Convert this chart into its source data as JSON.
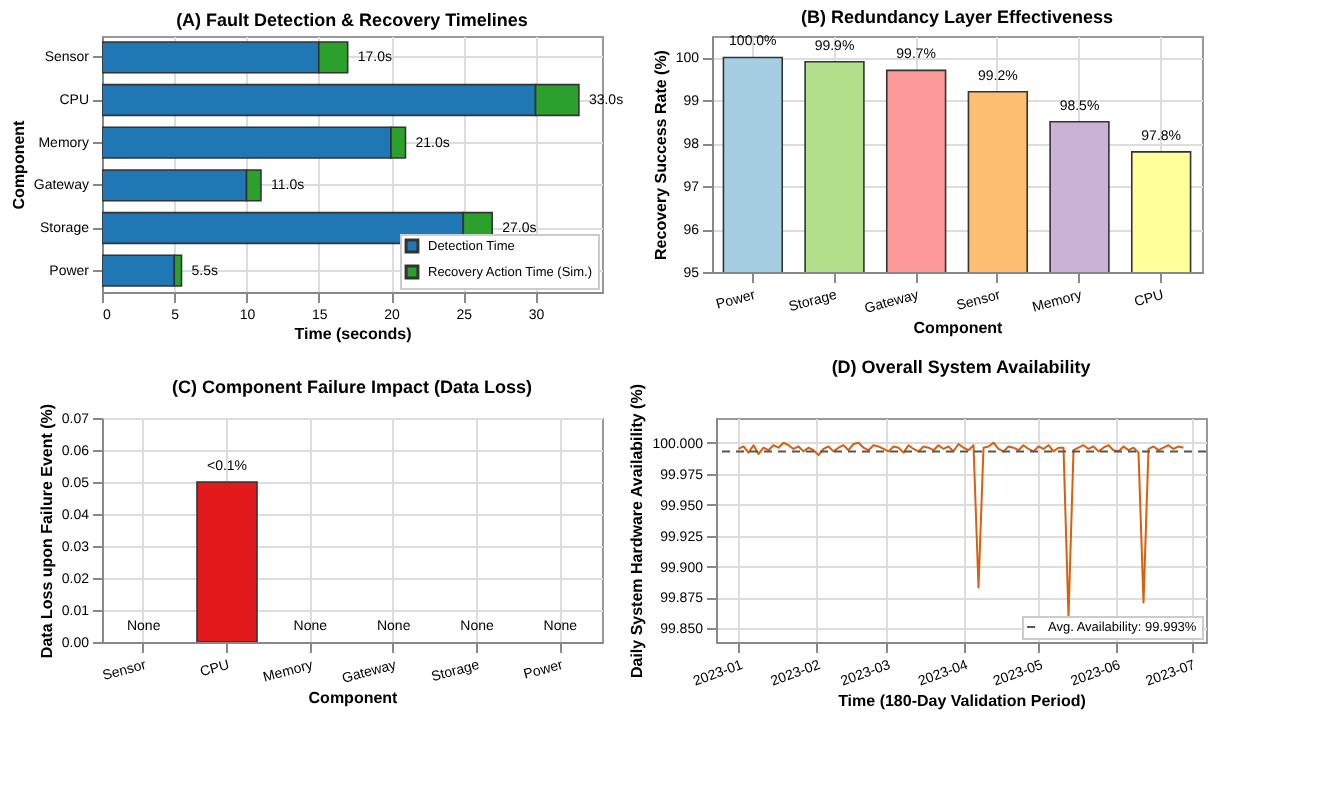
{
  "chart_data": [
    {
      "type": "bar",
      "orientation": "horizontal",
      "stacked": true,
      "title": "(A) Fault Detection & Recovery Timelines",
      "xlabel": "Time (seconds)",
      "ylabel": "Component",
      "categories": [
        "Sensor",
        "CPU",
        "Memory",
        "Gateway",
        "Storage",
        "Power"
      ],
      "series": [
        {
          "name": "Detection Time",
          "color": "#1f77b4",
          "values": [
            15,
            30,
            20,
            10,
            25,
            5
          ]
        },
        {
          "name": "Recovery Action Time (Sim.)",
          "color": "#2ca02c",
          "values": [
            2,
            3,
            1,
            1,
            2,
            0.5
          ]
        }
      ],
      "totals": [
        "17.0s",
        "33.0s",
        "21.0s",
        "11.0s",
        "27.0s",
        "5.5s"
      ],
      "xlim": [
        0,
        34.6
      ],
      "xticks": [
        0,
        5,
        10,
        15,
        20,
        25,
        30
      ],
      "grid": true,
      "legend": "bottom right"
    },
    {
      "type": "bar",
      "title": "(B) Redundancy Layer Effectiveness",
      "xlabel": "Component",
      "ylabel": "Recovery Success Rate (%)",
      "categories": [
        "Power",
        "Storage",
        "Gateway",
        "Sensor",
        "Memory",
        "CPU"
      ],
      "values": [
        100.0,
        99.9,
        99.7,
        99.2,
        98.5,
        97.8
      ],
      "colors": [
        "#a6cee3",
        "#b2df8a",
        "#fb9a99",
        "#fdbf6f",
        "#cab2d6",
        "#ffff99"
      ],
      "value_labels": [
        "100.0%",
        "99.9%",
        "99.7%",
        "99.2%",
        "98.5%",
        "97.8%"
      ],
      "ylim": [
        95,
        100.5
      ],
      "yticks": [
        95,
        96,
        97,
        98,
        99,
        100
      ],
      "grid": true
    },
    {
      "type": "bar",
      "title": "(C) Component Failure Impact (Data Loss)",
      "xlabel": "Component",
      "ylabel": "Data Loss upon Failure Event (%)",
      "categories": [
        "Sensor",
        "CPU",
        "Memory",
        "Gateway",
        "Storage",
        "Power"
      ],
      "values": [
        0,
        0.05,
        0,
        0,
        0,
        0
      ],
      "color": "#e31a1c",
      "value_labels": [
        "None",
        "<0.1%",
        "None",
        "None",
        "None",
        "None"
      ],
      "ylim": [
        0,
        0.07
      ],
      "yticks": [
        {
          "value": 0,
          "label": "0.00"
        },
        {
          "value": 0.01,
          "label": "0.01"
        },
        {
          "value": 0.02,
          "label": "0.02"
        },
        {
          "value": 0.03,
          "label": "0.03"
        },
        {
          "value": 0.04,
          "label": "0.04"
        },
        {
          "value": 0.05,
          "label": "0.05"
        },
        {
          "value": 0.06,
          "label": "0.06"
        },
        {
          "value": 0.07,
          "label": "0.07"
        }
      ],
      "grid": true
    },
    {
      "type": "line",
      "title": "(D) Overall System Availability",
      "xlabel": "Time (180-Day Validation Period)",
      "ylabel": "Daily System Hardware Availability (%)",
      "x": [
        "2023-01-01",
        "2023-01-03",
        "2023-01-05",
        "2023-01-07",
        "2023-01-09",
        "2023-01-11",
        "2023-01-13",
        "2023-01-15",
        "2023-01-17",
        "2023-01-19",
        "2023-01-21",
        "2023-01-23",
        "2023-01-25",
        "2023-01-27",
        "2023-01-29",
        "2023-01-31",
        "2023-02-02",
        "2023-02-04",
        "2023-02-06",
        "2023-02-08",
        "2023-02-10",
        "2023-02-12",
        "2023-02-14",
        "2023-02-16",
        "2023-02-18",
        "2023-02-20",
        "2023-02-22",
        "2023-02-24",
        "2023-02-26",
        "2023-02-28",
        "2023-03-02",
        "2023-03-04",
        "2023-03-06",
        "2023-03-08",
        "2023-03-10",
        "2023-03-12",
        "2023-03-14",
        "2023-03-16",
        "2023-03-18",
        "2023-03-20",
        "2023-03-22",
        "2023-03-24",
        "2023-03-26",
        "2023-03-28",
        "2023-03-30",
        "2023-04-01",
        "2023-04-03",
        "2023-04-05",
        "2023-04-07",
        "2023-04-09",
        "2023-04-11",
        "2023-04-13",
        "2023-04-15",
        "2023-04-17",
        "2023-04-19",
        "2023-04-21",
        "2023-04-23",
        "2023-04-25",
        "2023-04-27",
        "2023-04-29",
        "2023-05-01",
        "2023-05-03",
        "2023-05-05",
        "2023-05-07",
        "2023-05-09",
        "2023-05-11",
        "2023-05-13",
        "2023-05-15",
        "2023-05-17",
        "2023-05-19",
        "2023-05-21",
        "2023-05-23",
        "2023-05-25",
        "2023-05-27",
        "2023-05-29",
        "2023-05-31",
        "2023-06-02",
        "2023-06-04",
        "2023-06-06",
        "2023-06-08",
        "2023-06-10",
        "2023-06-12",
        "2023-06-14",
        "2023-06-16",
        "2023-06-18",
        "2023-06-20",
        "2023-06-22",
        "2023-06-24",
        "2023-06-26",
        "2023-06-28"
      ],
      "series": [
        {
          "color": "#d95f0e",
          "values": [
            99.995,
            99.997,
            99.992,
            99.998,
            99.991,
            99.996,
            99.994,
            99.998,
            99.996,
            100.0,
            99.998,
            99.995,
            99.997,
            99.993,
            99.996,
            99.994,
            99.99,
            99.995,
            99.997,
            99.993,
            99.996,
            99.998,
            99.994,
            99.999,
            100.0,
            99.996,
            99.994,
            99.998,
            99.997,
            99.995,
            99.993,
            99.997,
            99.996,
            99.992,
            99.998,
            99.995,
            99.993,
            99.997,
            99.996,
            99.994,
            99.998,
            99.995,
            99.997,
            99.993,
            99.999,
            99.996,
            99.994,
            99.998,
            99.883,
            99.996,
            99.997,
            100.0,
            99.995,
            99.993,
            99.997,
            99.996,
            99.994,
            99.998,
            99.995,
            99.993,
            99.997,
            99.995,
            99.998,
            99.993,
            99.996,
            99.996,
            99.859,
            99.994,
            99.996,
            99.998,
            99.995,
            99.997,
            99.993,
            99.996,
            99.998,
            99.994,
            99.993,
            99.997,
            99.994,
            99.996,
            99.992,
            99.871,
            99.995,
            99.997,
            99.994,
            99.996,
            99.998,
            99.995,
            99.997,
            99.996
          ]
        }
      ],
      "ref_lines": [
        {
          "axis": "y",
          "value": 99.993,
          "label": "Avg. Availability: 99.993%",
          "color": "#555555",
          "line_style": "dashed"
        }
      ],
      "xlim": [
        "2022-12-23",
        "2023-07-07"
      ],
      "xticks": [
        {
          "value": "2023-01-01",
          "label": "2023-01"
        },
        {
          "value": "2023-02-01",
          "label": "2023-02"
        },
        {
          "value": "2023-03-01",
          "label": "2023-03"
        },
        {
          "value": "2023-04-01",
          "label": "2023-04"
        },
        {
          "value": "2023-05-01",
          "label": "2023-05"
        },
        {
          "value": "2023-06-01",
          "label": "2023-06"
        },
        {
          "value": "2023-07-01",
          "label": "2023-07"
        }
      ],
      "ylim": [
        99.839,
        100.02
      ],
      "yticks": [
        {
          "value": 99.85,
          "label": "99.850"
        },
        {
          "value": 99.875,
          "label": "99.875"
        },
        {
          "value": 99.9,
          "label": "99.900"
        },
        {
          "value": 99.925,
          "label": "99.925"
        },
        {
          "value": 99.95,
          "label": "99.950"
        },
        {
          "value": 99.975,
          "label": "99.975"
        },
        {
          "value": 100,
          "label": "100.000"
        }
      ],
      "grid": true,
      "legend": "bottom right"
    }
  ]
}
